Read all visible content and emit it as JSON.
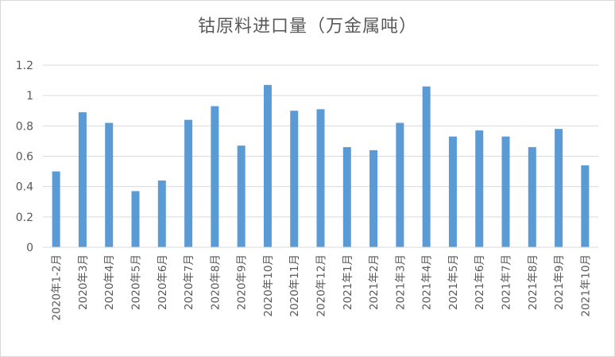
{
  "chart_data": {
    "type": "bar",
    "title": "钴原料进口量（万金属吨）",
    "xlabel": "",
    "ylabel": "",
    "categories": [
      "2020年1-2月",
      "2020年3月",
      "2020年4月",
      "2020年5月",
      "2020年6月",
      "2020年7月",
      "2020年8月",
      "2020年9月",
      "2020年10月",
      "2020年11月",
      "2020年12月",
      "2021年1月",
      "2021年2月",
      "2021年3月",
      "2021年4月",
      "2021年5月",
      "2021年6月",
      "2021年7月",
      "2021年8月",
      "2021年9月",
      "2021年10月"
    ],
    "values": [
      0.5,
      0.89,
      0.82,
      0.37,
      0.44,
      0.84,
      0.93,
      0.67,
      1.07,
      0.9,
      0.91,
      0.66,
      0.64,
      0.82,
      1.06,
      0.73,
      0.77,
      0.73,
      0.66,
      0.78,
      0.54
    ],
    "ylim": [
      0,
      1.2
    ],
    "yticks": [
      0,
      0.2,
      0.4,
      0.6,
      0.8,
      1,
      1.2
    ],
    "ytick_labels": [
      "0",
      "0.2",
      "0.4",
      "0.6",
      "0.8",
      "1",
      "1.2"
    ],
    "grid": true,
    "legend": "none",
    "bar_color": "#5b9bd5",
    "grid_color": "#d9d9d9",
    "text_color": "#595959"
  }
}
